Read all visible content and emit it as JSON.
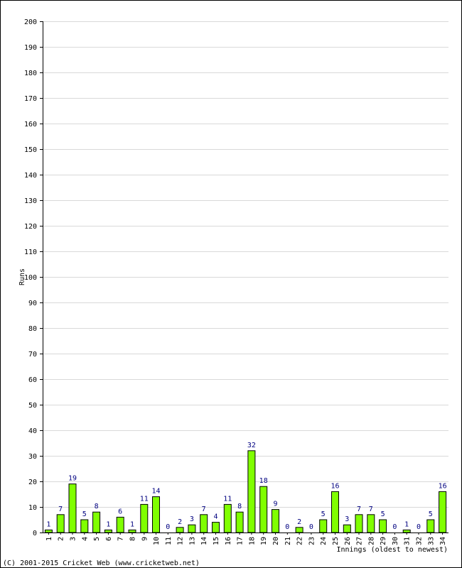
{
  "chart_data": {
    "type": "bar",
    "ylabel": "Runs",
    "xlabel": "Innings (oldest to newest)",
    "ylim": [
      0,
      200
    ],
    "y_ticks": [
      0,
      10,
      20,
      30,
      40,
      50,
      60,
      70,
      80,
      90,
      100,
      110,
      120,
      130,
      140,
      150,
      160,
      170,
      180,
      190,
      200
    ],
    "categories": [
      "1",
      "2",
      "3",
      "4",
      "5",
      "6",
      "7",
      "8",
      "9",
      "10",
      "11",
      "12",
      "13",
      "14",
      "15",
      "16",
      "17",
      "18",
      "19",
      "20",
      "21",
      "22",
      "23",
      "24",
      "25",
      "26",
      "27",
      "28",
      "29",
      "30",
      "31",
      "32",
      "33",
      "34"
    ],
    "values": [
      1,
      7,
      19,
      5,
      8,
      1,
      6,
      1,
      11,
      14,
      0,
      2,
      3,
      7,
      4,
      11,
      8,
      32,
      18,
      9,
      0,
      2,
      0,
      5,
      16,
      3,
      7,
      7,
      5,
      0,
      1,
      0,
      5,
      16
    ],
    "grid": true,
    "colors": {
      "bar": "#80ff00",
      "bar_edge": "#000000",
      "label": "#000080",
      "grid": "#d9d9d9"
    }
  },
  "footer": {
    "copyright": "(C) 2001-2015 Cricket Web (www.cricketweb.net)"
  }
}
